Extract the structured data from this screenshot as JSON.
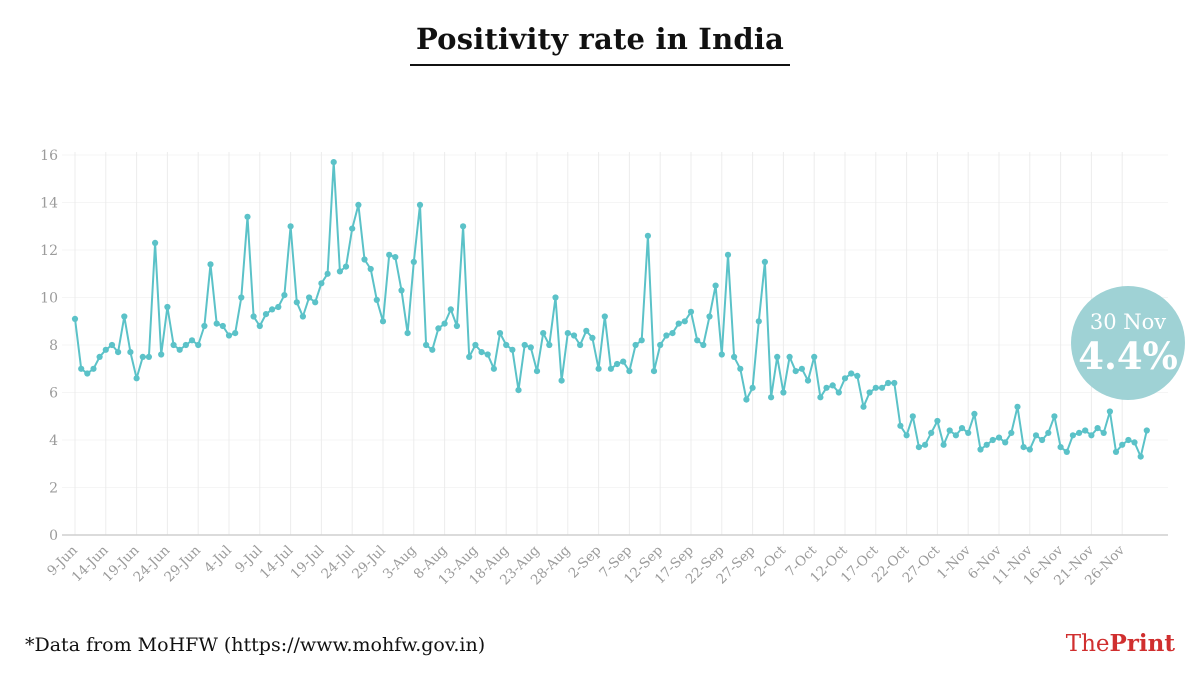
{
  "title": "Positivity rate in India",
  "chart_data": {
    "type": "line",
    "title": "Positivity rate in India",
    "series_name": "Daily positivity rate (%)",
    "x_tick_labels": [
      "9-Jun",
      "14-Jun",
      "19-Jun",
      "24-Jun",
      "29-Jun",
      "4-Jul",
      "9-Jul",
      "14-Jul",
      "19-Jul",
      "24-Jul",
      "29-Jul",
      "3-Aug",
      "8-Aug",
      "13-Aug",
      "18-Aug",
      "23-Aug",
      "28-Aug",
      "2-Sep",
      "7-Sep",
      "12-Sep",
      "17-Sep",
      "22-Sep",
      "27-Sep",
      "2-Oct",
      "7-Oct",
      "12-Oct",
      "17-Oct",
      "22-Oct",
      "27-Oct",
      "1-Nov",
      "6-Nov",
      "11-Nov",
      "16-Nov",
      "21-Nov",
      "26-Nov"
    ],
    "x_tick_every": 5,
    "values": [
      9.1,
      7.0,
      6.8,
      7.0,
      7.5,
      7.8,
      8.0,
      7.7,
      9.2,
      7.7,
      6.6,
      7.5,
      7.5,
      12.3,
      7.6,
      9.6,
      8.0,
      7.8,
      8.0,
      8.2,
      8.0,
      8.8,
      11.4,
      8.9,
      8.8,
      8.4,
      8.5,
      10.0,
      13.4,
      9.2,
      8.8,
      9.3,
      9.5,
      9.6,
      10.1,
      13.0,
      9.8,
      9.2,
      10.0,
      9.8,
      10.6,
      11.0,
      15.7,
      11.1,
      11.3,
      12.9,
      13.9,
      11.6,
      11.2,
      9.9,
      9.0,
      11.8,
      11.7,
      10.3,
      8.5,
      11.5,
      13.9,
      8.0,
      7.8,
      8.7,
      8.9,
      9.5,
      8.8,
      13.0,
      7.5,
      8.0,
      7.7,
      7.6,
      7.0,
      8.5,
      8.0,
      7.8,
      6.1,
      8.0,
      7.9,
      6.9,
      8.5,
      8.0,
      10.0,
      6.5,
      8.5,
      8.4,
      8.0,
      8.6,
      8.3,
      7.0,
      9.2,
      7.0,
      7.2,
      7.3,
      6.9,
      8.0,
      8.2,
      12.6,
      6.9,
      8.0,
      8.4,
      8.5,
      8.9,
      9.0,
      9.4,
      8.2,
      8.0,
      9.2,
      10.5,
      7.6,
      11.8,
      7.5,
      7.0,
      5.7,
      6.2,
      9.0,
      11.5,
      5.8,
      7.5,
      6.0,
      7.5,
      6.9,
      7.0,
      6.5,
      7.5,
      5.8,
      6.2,
      6.3,
      6.0,
      6.6,
      6.8,
      6.7,
      5.4,
      6.0,
      6.2,
      6.2,
      6.4,
      6.4,
      4.6,
      4.2,
      5.0,
      3.7,
      3.8,
      4.3,
      4.8,
      3.8,
      4.4,
      4.2,
      4.5,
      4.3,
      5.1,
      3.6,
      3.8,
      4.0,
      4.1,
      3.9,
      4.3,
      5.4,
      3.7,
      3.6,
      4.2,
      4.0,
      4.3,
      5.0,
      3.7,
      3.5,
      4.2,
      4.3,
      4.4,
      4.2,
      4.5,
      4.3,
      5.2,
      3.5,
      3.8,
      4.0,
      3.9,
      3.3,
      4.4
    ],
    "ylim": [
      0,
      16
    ],
    "yticks": [
      0,
      2,
      4,
      6,
      8,
      10,
      12,
      14,
      16
    ],
    "grid": true,
    "legend_position": "none",
    "line_color": "#5bc2c8",
    "grid_color": "#ececec",
    "axis_color": "#cfcfcf",
    "tick_label_color": "#9b9b9b"
  },
  "callout": {
    "date": "30 Nov",
    "value": "4.4%",
    "bg_color": "#9fd2d5"
  },
  "footer": {
    "source": "*Data from MoHFW (https://www.mohfw.gov.in)",
    "brand": {
      "the": "The",
      "print": "Print",
      "color": "#d02f2f"
    }
  }
}
